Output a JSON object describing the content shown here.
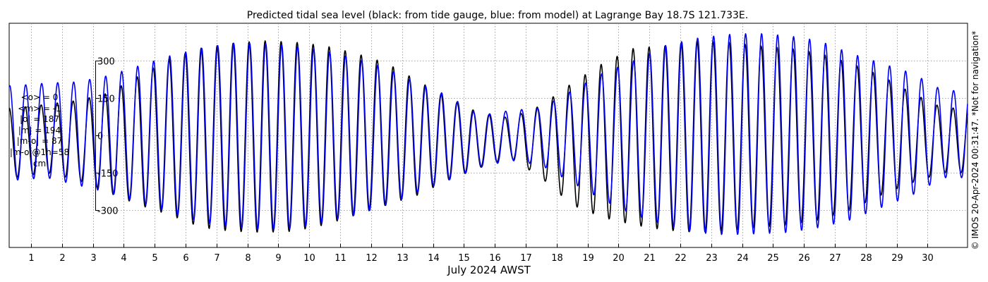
{
  "title": "Predicted tidal sea level (black: from tide gauge, blue: from model) at Lagrange Bay 18.7S 121.733E.",
  "copyright": "© IMOS 20-Apr-2024 00:31:47. *Not for navigation*",
  "stats": [
    "<o> = 0",
    "<m> = -1",
    "|o| = 187",
    "|m| = 194",
    "|m-o| = 87",
    "|m-o|@1h=58",
    "cm"
  ],
  "colors": {
    "observed": "#000000",
    "model": "#0000ff",
    "grid": "#8c8c8c",
    "frame": "#000000"
  },
  "chart_data": {
    "type": "line",
    "title": "Predicted tidal sea level (black: from tide gauge, blue: from model) at Lagrange Bay 18.7S 121.733E.",
    "xlabel": "July 2024 AWST",
    "ylabel": "",
    "x_ticks": [
      "1",
      "2",
      "3",
      "4",
      "5",
      "6",
      "7",
      "8",
      "9",
      "10",
      "11",
      "12",
      "13",
      "14",
      "15",
      "16",
      "17",
      "18",
      "19",
      "20",
      "21",
      "22",
      "23",
      "24",
      "25",
      "26",
      "27",
      "28",
      "29",
      "30"
    ],
    "xlim": [
      "2024-06-30T07:00",
      "2024-07-31T07:00"
    ],
    "y_ticks": [
      300,
      150,
      0,
      -150,
      -300
    ],
    "y_tick_labels": [
      "300",
      "150",
      "0",
      "-150",
      "-300"
    ],
    "ylim": [
      -450,
      450
    ],
    "grid": true,
    "tidal_cycle_hours": 12.42,
    "series": [
      {
        "name": "from tide gauge",
        "color": "#000000",
        "daily": [
          {
            "date": "2024-06-30",
            "high": 110,
            "low": -170
          },
          {
            "date": "2024-07-01",
            "high": 125,
            "low": -150
          },
          {
            "date": "2024-07-02",
            "high": 140,
            "low": -180
          },
          {
            "date": "2024-07-03",
            "high": 170,
            "low": -230
          },
          {
            "date": "2024-07-04",
            "high": 240,
            "low": -280
          },
          {
            "date": "2024-07-05",
            "high": 310,
            "low": -320
          },
          {
            "date": "2024-07-06",
            "high": 350,
            "low": -370
          },
          {
            "date": "2024-07-07",
            "high": 370,
            "low": -385
          },
          {
            "date": "2024-07-08",
            "high": 380,
            "low": -390
          },
          {
            "date": "2024-07-09",
            "high": 375,
            "low": -385
          },
          {
            "date": "2024-07-10",
            "high": 360,
            "low": -360
          },
          {
            "date": "2024-07-11",
            "high": 330,
            "low": -320
          },
          {
            "date": "2024-07-12",
            "high": 290,
            "low": -280
          },
          {
            "date": "2024-07-13",
            "high": 220,
            "low": -240
          },
          {
            "date": "2024-07-14",
            "high": 150,
            "low": -180
          },
          {
            "date": "2024-07-15",
            "high": 90,
            "low": -130
          },
          {
            "date": "2024-07-16",
            "high": 70,
            "low": -90
          },
          {
            "date": "2024-07-17",
            "high": 120,
            "low": -170
          },
          {
            "date": "2024-07-18",
            "high": 210,
            "low": -280
          },
          {
            "date": "2024-07-19",
            "high": 290,
            "low": -330
          },
          {
            "date": "2024-07-20",
            "high": 350,
            "low": -360
          },
          {
            "date": "2024-07-21",
            "high": 360,
            "low": -380
          },
          {
            "date": "2024-07-22",
            "high": 380,
            "low": -390
          },
          {
            "date": "2024-07-23",
            "high": 375,
            "low": -385
          },
          {
            "date": "2024-07-24",
            "high": 360,
            "low": -370
          },
          {
            "date": "2024-07-25",
            "high": 350,
            "low": -360
          },
          {
            "date": "2024-07-26",
            "high": 330,
            "low": -340
          },
          {
            "date": "2024-07-27",
            "high": 290,
            "low": -300
          },
          {
            "date": "2024-07-28",
            "high": 240,
            "low": -240
          },
          {
            "date": "2024-07-29",
            "high": 170,
            "low": -190
          },
          {
            "date": "2024-07-30",
            "high": 110,
            "low": -150
          }
        ]
      },
      {
        "name": "from model",
        "color": "#0000ff",
        "daily": [
          {
            "date": "2024-06-30",
            "high": 200,
            "low": -180
          },
          {
            "date": "2024-07-01",
            "high": 210,
            "low": -170
          },
          {
            "date": "2024-07-02",
            "high": 215,
            "low": -200
          },
          {
            "date": "2024-07-03",
            "high": 240,
            "low": -230
          },
          {
            "date": "2024-07-04",
            "high": 280,
            "low": -270
          },
          {
            "date": "2024-07-05",
            "high": 320,
            "low": -310
          },
          {
            "date": "2024-07-06",
            "high": 350,
            "low": -350
          },
          {
            "date": "2024-07-07",
            "high": 370,
            "low": -370
          },
          {
            "date": "2024-07-08",
            "high": 370,
            "low": -380
          },
          {
            "date": "2024-07-09",
            "high": 360,
            "low": -375
          },
          {
            "date": "2024-07-10",
            "high": 340,
            "low": -350
          },
          {
            "date": "2024-07-11",
            "high": 310,
            "low": -320
          },
          {
            "date": "2024-07-12",
            "high": 270,
            "low": -280
          },
          {
            "date": "2024-07-13",
            "high": 210,
            "low": -230
          },
          {
            "date": "2024-07-14",
            "high": 160,
            "low": -180
          },
          {
            "date": "2024-07-15",
            "high": 80,
            "low": -130
          },
          {
            "date": "2024-07-16",
            "high": 100,
            "low": -100
          },
          {
            "date": "2024-07-17",
            "high": 110,
            "low": -120
          },
          {
            "date": "2024-07-18",
            "high": 180,
            "low": -190
          },
          {
            "date": "2024-07-19",
            "high": 250,
            "low": -260
          },
          {
            "date": "2024-07-20",
            "high": 300,
            "low": -320
          },
          {
            "date": "2024-07-21",
            "high": 360,
            "low": -360
          },
          {
            "date": "2024-07-22",
            "high": 390,
            "low": -390
          },
          {
            "date": "2024-07-23",
            "high": 405,
            "low": -400
          },
          {
            "date": "2024-07-24",
            "high": 410,
            "low": -395
          },
          {
            "date": "2024-07-25",
            "high": 400,
            "low": -390
          },
          {
            "date": "2024-07-26",
            "high": 380,
            "low": -370
          },
          {
            "date": "2024-07-27",
            "high": 330,
            "low": -340
          },
          {
            "date": "2024-07-28",
            "high": 290,
            "low": -290
          },
          {
            "date": "2024-07-29",
            "high": 250,
            "low": -240
          },
          {
            "date": "2024-07-30",
            "high": 180,
            "low": -170
          }
        ]
      }
    ]
  }
}
